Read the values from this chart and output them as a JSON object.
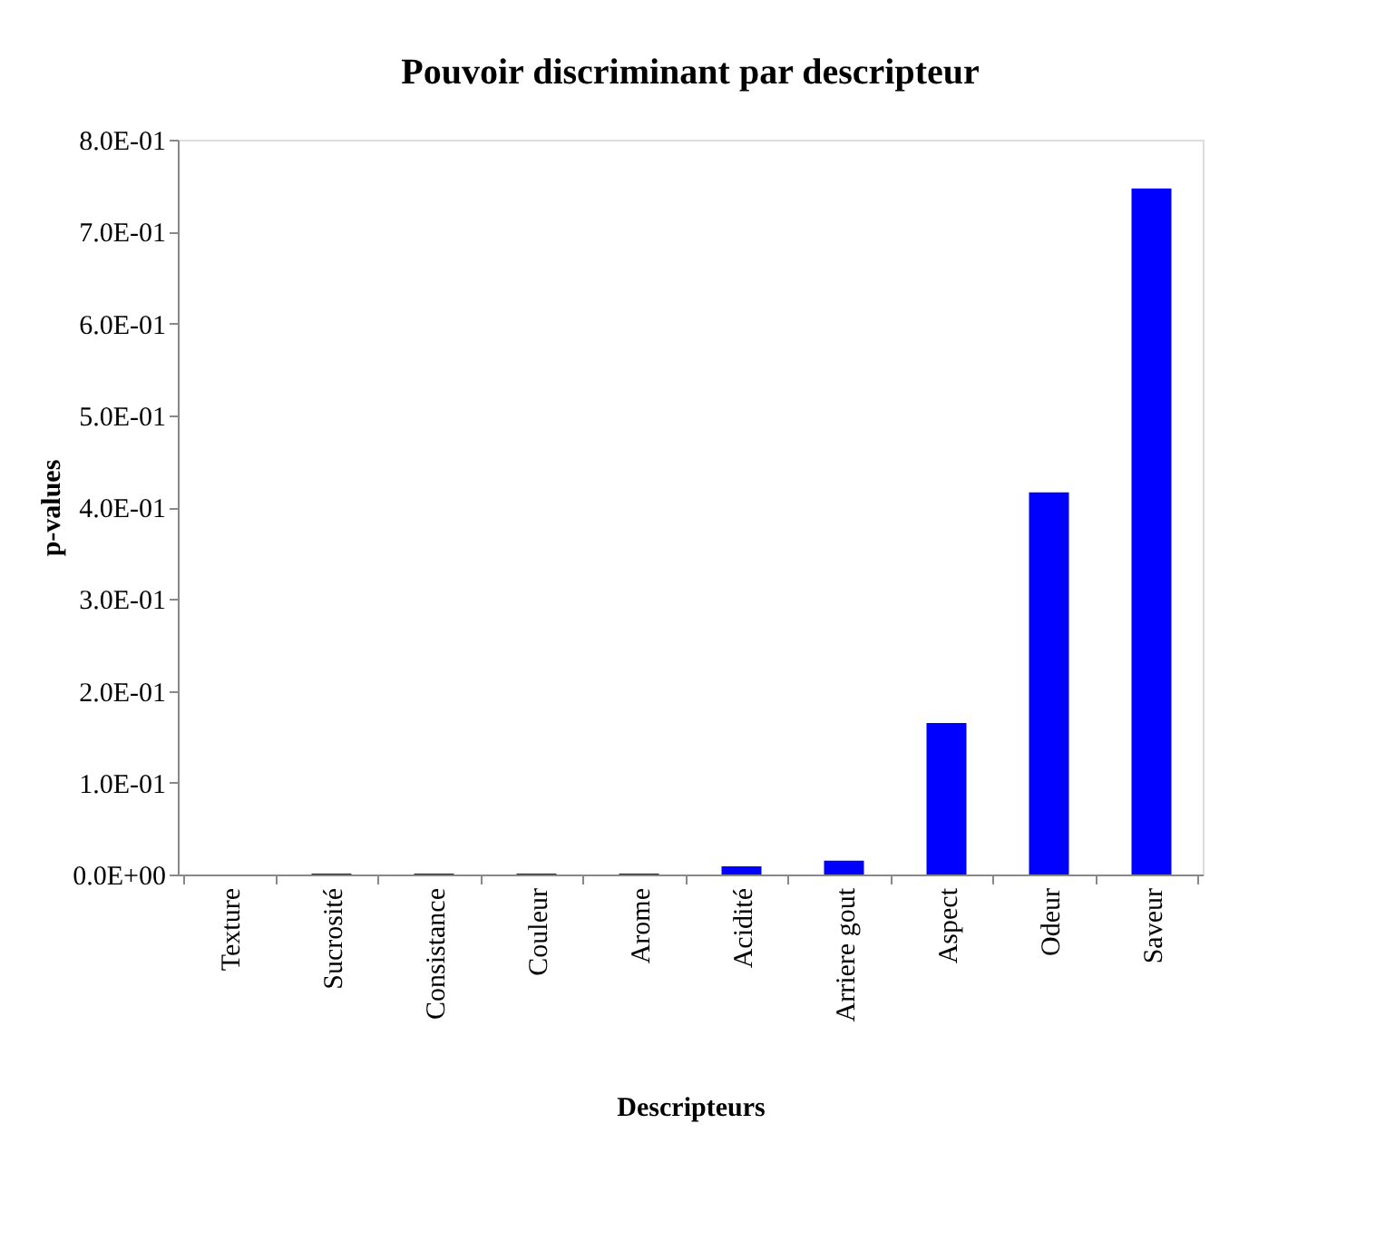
{
  "chart_data": {
    "type": "bar",
    "title": "Pouvoir discriminant par descripteur",
    "xlabel": "Descripteurs",
    "ylabel": "p-values",
    "categories": [
      "Texture",
      "Sucrosité",
      "Consistance",
      "Couleur",
      "Arome",
      "Acidité",
      "Arriere gout",
      "Aspect",
      "Odeur",
      "Saveur"
    ],
    "values": [
      0,
      0.001,
      0.001,
      0.001,
      0.001,
      0.009,
      0.015,
      0.165,
      0.416,
      0.747
    ],
    "color": "#0000ff",
    "ylim": [
      0,
      0.8
    ],
    "yticks": [
      {
        "value": 0,
        "label": "0.0E+00"
      },
      {
        "value": 0.1,
        "label": "1.0E-01"
      },
      {
        "value": 0.2,
        "label": "2.0E-01"
      },
      {
        "value": 0.3,
        "label": "3.0E-01"
      },
      {
        "value": 0.4,
        "label": "4.0E-01"
      },
      {
        "value": 0.5,
        "label": "5.0E-01"
      },
      {
        "value": 0.6,
        "label": "6.0E-01"
      },
      {
        "value": 0.7,
        "label": "7.0E-01"
      },
      {
        "value": 0.8,
        "label": "8.0E-01"
      }
    ],
    "grid": false
  }
}
